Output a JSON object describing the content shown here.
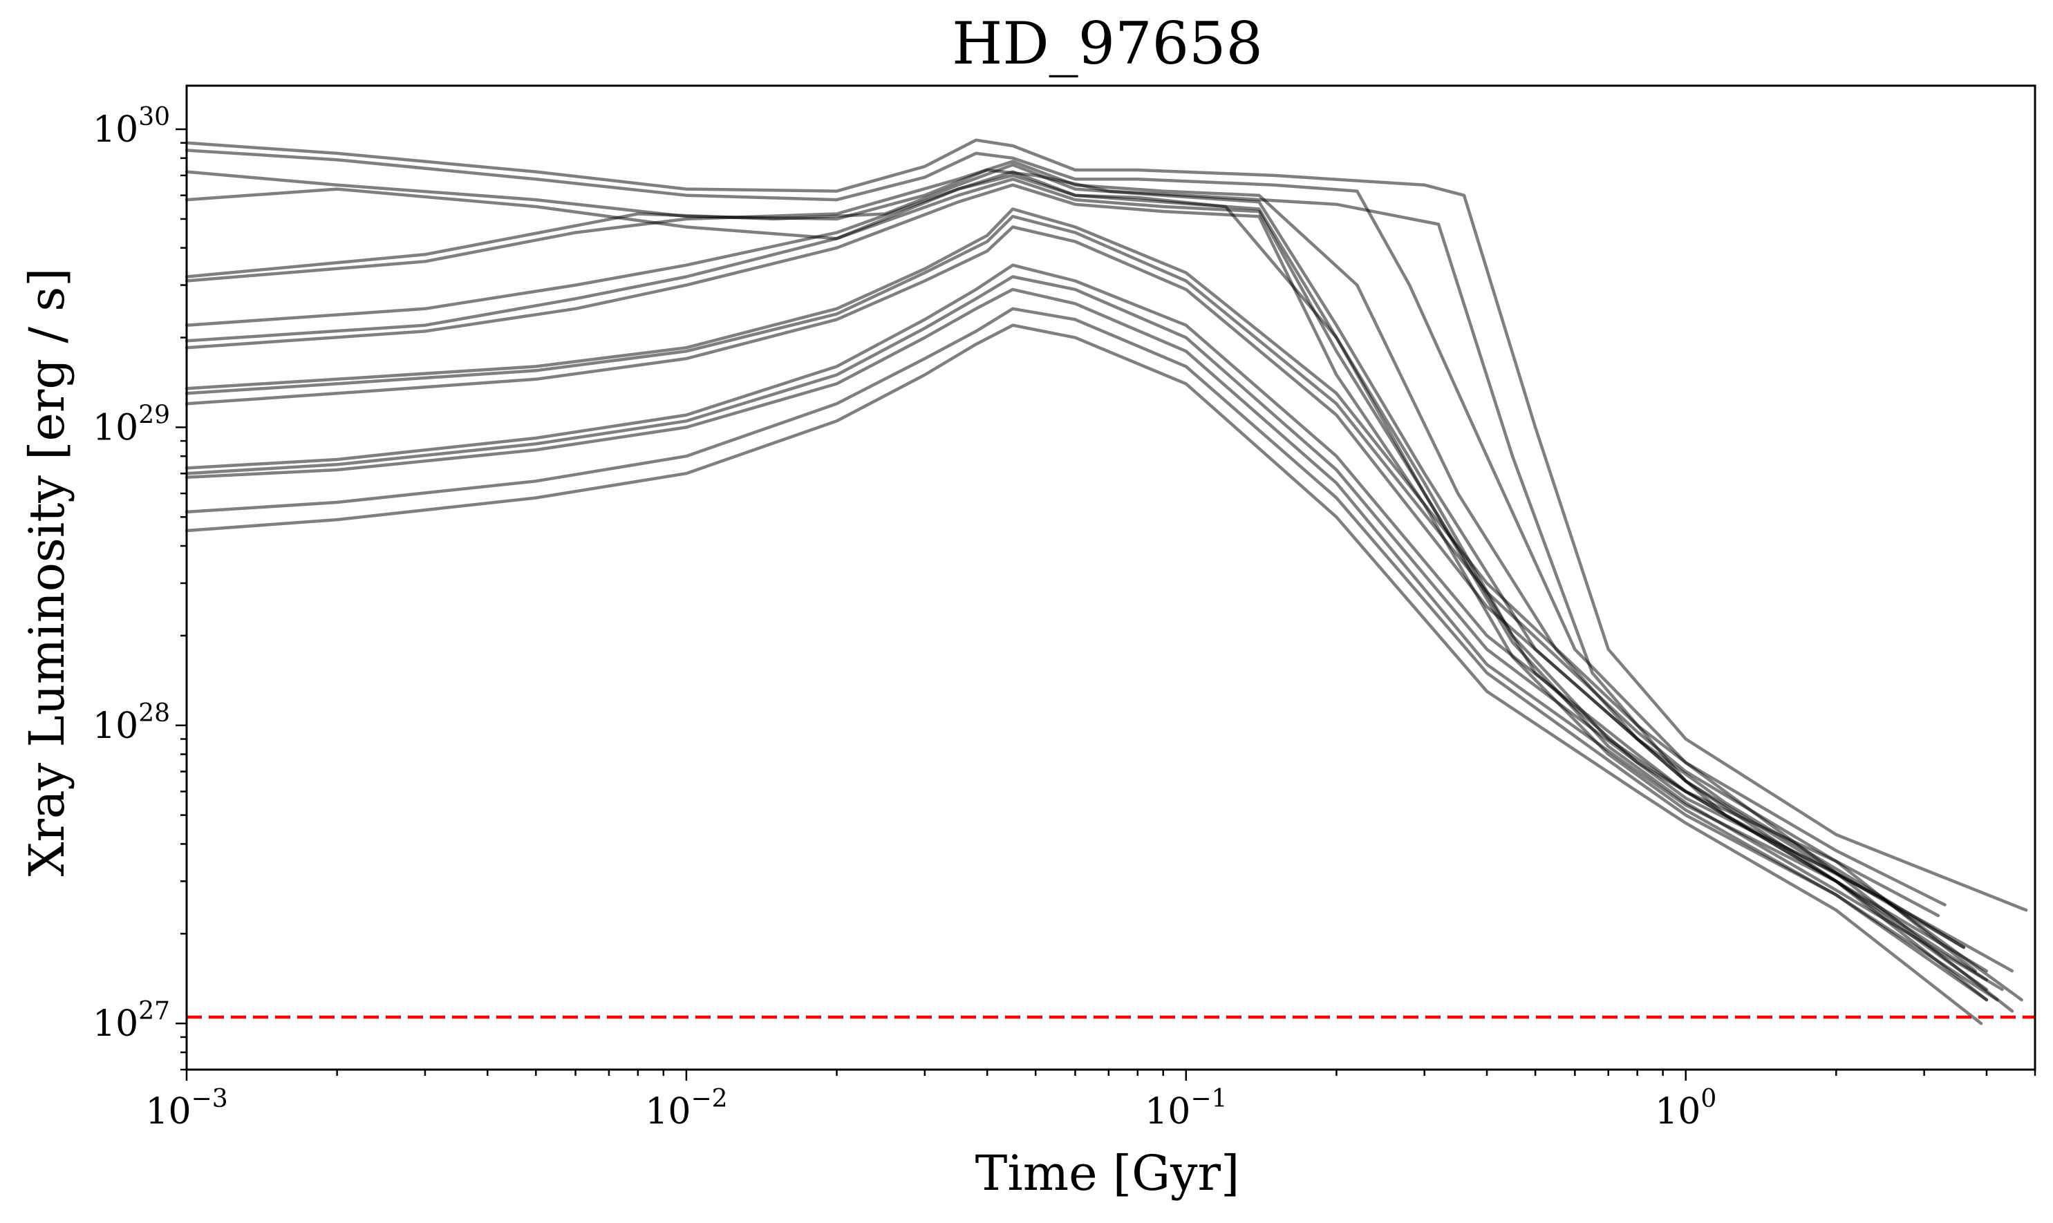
{
  "chart_data": {
    "type": "line",
    "title": "HD_97658",
    "xlabel": "Time [Gyr]",
    "ylabel": "Xray Luminosity [erg / s]",
    "xscale": "log",
    "yscale": "log",
    "xlim": [
      0.001,
      5.0
    ],
    "ylim": [
      7e+26,
      1.4e+30
    ],
    "grid": false,
    "legend": "none",
    "line_color": "#000000",
    "line_alpha": 0.5,
    "x_ticks": [
      {
        "value": 0.001,
        "base": "10",
        "exp": "−3"
      },
      {
        "value": 0.01,
        "base": "10",
        "exp": "−2"
      },
      {
        "value": 0.1,
        "base": "10",
        "exp": "−1"
      },
      {
        "value": 1,
        "base": "10",
        "exp": "0"
      }
    ],
    "y_ticks": [
      {
        "value": 1e+27,
        "base": "10",
        "exp": "27"
      },
      {
        "value": 1e+28,
        "base": "10",
        "exp": "28"
      },
      {
        "value": 1e+29,
        "base": "10",
        "exp": "29"
      },
      {
        "value": 1e+30,
        "base": "10",
        "exp": "30"
      }
    ],
    "reference_line": {
      "y": 1.05e+27,
      "color": "#ff0000",
      "style": "dashed"
    },
    "series": [
      {
        "x": [
          0.001,
          0.002,
          0.005,
          0.01,
          0.02,
          0.03,
          0.038,
          0.045,
          0.06,
          0.08,
          0.15,
          0.3,
          0.36,
          0.5,
          0.7,
          1.0,
          2.0,
          4.8
        ],
        "y": [
          9e+29,
          8.3e+29,
          7.2e+29,
          6.3e+29,
          6.2e+29,
          7.5e+29,
          9.2e+29,
          8.8e+29,
          7.3e+29,
          7.3e+29,
          7e+29,
          6.5e+29,
          6e+29,
          1e+29,
          1.8e+28,
          9e+27,
          4.3e+27,
          2.4e+27
        ]
      },
      {
        "x": [
          0.001,
          0.002,
          0.005,
          0.01,
          0.02,
          0.03,
          0.038,
          0.045,
          0.06,
          0.08,
          0.15,
          0.22,
          0.28,
          0.4,
          0.6,
          1.0,
          2.0,
          4.5
        ],
        "y": [
          8.5e+29,
          7.9e+29,
          6.8e+29,
          6e+29,
          5.8e+29,
          6.9e+29,
          8.3e+29,
          8e+29,
          6.8e+29,
          6.8e+29,
          6.5e+29,
          6.2e+29,
          3e+29,
          8e+28,
          1.8e+28,
          7.5e+27,
          3.2e+27,
          1.5e+27
        ]
      },
      {
        "x": [
          0.001,
          0.002,
          0.005,
          0.01,
          0.02,
          0.03,
          0.04,
          0.05,
          0.07,
          0.1,
          0.2,
          0.32,
          0.45,
          0.65,
          1.0,
          2.0,
          4.0
        ],
        "y": [
          7.2e+29,
          6.5e+29,
          5.8e+29,
          5.1e+29,
          5e+29,
          6e+29,
          7.3e+29,
          7e+29,
          6.2e+29,
          6e+29,
          5.6e+29,
          4.8e+29,
          8e+28,
          1.5e+28,
          6.5e+27,
          3e+27,
          1.2e+27
        ]
      },
      {
        "x": [
          0.001,
          0.002,
          0.005,
          0.01,
          0.02,
          0.035,
          0.045,
          0.06,
          0.08,
          0.12,
          0.2,
          0.3,
          0.5,
          0.8,
          1.2,
          2.5,
          4.7
        ],
        "y": [
          5.8e+29,
          6.3e+29,
          5.5e+29,
          4.7e+29,
          4.3e+29,
          6.3e+29,
          7e+29,
          6e+29,
          5.9e+29,
          5.5e+29,
          2e+29,
          6e+28,
          1.5e+28,
          7.5e+27,
          5e+27,
          2.6e+27,
          1.2e+27
        ]
      },
      {
        "x": [
          0.001,
          0.003,
          0.008,
          0.015,
          0.025,
          0.035,
          0.045,
          0.06,
          0.09,
          0.14,
          0.2,
          0.3,
          0.5,
          0.8,
          1.2,
          2.0,
          4.0
        ],
        "y": [
          3.2e+29,
          3.8e+29,
          5.2e+29,
          5e+29,
          5.2e+29,
          6.5e+29,
          7.6e+29,
          6.3e+29,
          6e+29,
          5.7e+29,
          2.2e+29,
          7e+28,
          1.8e+28,
          9e+27,
          5e+27,
          3e+27,
          1.4e+27
        ]
      },
      {
        "x": [
          0.001,
          0.003,
          0.006,
          0.01,
          0.02,
          0.035,
          0.045,
          0.06,
          0.09,
          0.14,
          0.22,
          0.35,
          0.55,
          0.8,
          1.2,
          2.0,
          3.6
        ],
        "y": [
          3.1e+29,
          3.6e+29,
          4.5e+29,
          5e+29,
          5.2e+29,
          6.8e+29,
          7.8e+29,
          6.5e+29,
          6.2e+29,
          6e+29,
          3e+29,
          6e+28,
          1.8e+28,
          9e+27,
          5.5e+27,
          3.3e+27,
          1.8e+27
        ]
      },
      {
        "x": [
          0.001,
          0.003,
          0.006,
          0.01,
          0.02,
          0.035,
          0.045,
          0.06,
          0.09,
          0.14,
          0.2,
          0.3,
          0.45,
          0.7,
          1.0,
          2.0,
          4.0
        ],
        "y": [
          2.2e+29,
          2.5e+29,
          3e+29,
          3.5e+29,
          4.5e+29,
          6.3e+29,
          7.2e+29,
          6e+29,
          5.7e+29,
          5.4e+29,
          2e+29,
          6.5e+28,
          2e+28,
          9e+27,
          6e+27,
          3e+27,
          1.3e+27
        ]
      },
      {
        "x": [
          0.001,
          0.003,
          0.006,
          0.01,
          0.02,
          0.035,
          0.045,
          0.06,
          0.09,
          0.14,
          0.2,
          0.3,
          0.45,
          0.7,
          1.0,
          2.0,
          4.3
        ],
        "y": [
          1.95e+29,
          2.2e+29,
          2.7e+29,
          3.2e+29,
          4.3e+29,
          6e+29,
          6.8e+29,
          5.8e+29,
          5.5e+29,
          5.3e+29,
          1.8e+29,
          6e+28,
          1.9e+28,
          8.5e+27,
          5.5e+27,
          2.8e+27,
          1.3e+27
        ]
      },
      {
        "x": [
          0.001,
          0.003,
          0.006,
          0.01,
          0.02,
          0.035,
          0.045,
          0.06,
          0.09,
          0.14,
          0.2,
          0.3,
          0.45,
          0.7,
          1.0,
          2.0,
          4.0
        ],
        "y": [
          1.85e+29,
          2.1e+29,
          2.5e+29,
          3e+29,
          4e+29,
          5.7e+29,
          6.5e+29,
          5.6e+29,
          5.3e+29,
          5.1e+29,
          1.5e+29,
          5.5e+28,
          1.7e+28,
          8e+27,
          5.2e+27,
          2.7e+27,
          1.2e+27
        ]
      },
      {
        "x": [
          0.001,
          0.002,
          0.005,
          0.01,
          0.02,
          0.03,
          0.04,
          0.045,
          0.06,
          0.1,
          0.2,
          0.4,
          0.8,
          1.0,
          2.0,
          3.3
        ],
        "y": [
          1.35e+29,
          1.45e+29,
          1.6e+29,
          1.85e+29,
          2.5e+29,
          3.4e+29,
          4.4e+29,
          5.4e+29,
          4.7e+29,
          3.3e+29,
          1.3e+29,
          3e+28,
          1e+28,
          7.5e+27,
          3.8e+27,
          2.5e+27
        ]
      },
      {
        "x": [
          0.001,
          0.002,
          0.005,
          0.01,
          0.02,
          0.03,
          0.04,
          0.045,
          0.06,
          0.1,
          0.2,
          0.4,
          0.8,
          1.0,
          2.0,
          3.8
        ],
        "y": [
          1.3e+29,
          1.4e+29,
          1.55e+29,
          1.8e+29,
          2.4e+29,
          3.3e+29,
          4.2e+29,
          5.1e+29,
          4.5e+29,
          3.1e+29,
          1.2e+29,
          2.8e+28,
          9.5e+27,
          7e+27,
          3.5e+27,
          1.5e+27
        ]
      },
      {
        "x": [
          0.001,
          0.002,
          0.005,
          0.01,
          0.02,
          0.03,
          0.04,
          0.045,
          0.06,
          0.1,
          0.2,
          0.4,
          0.8,
          1.0,
          2.0,
          4.5
        ],
        "y": [
          1.2e+29,
          1.3e+29,
          1.45e+29,
          1.7e+29,
          2.3e+29,
          3.1e+29,
          3.9e+29,
          4.7e+29,
          4.2e+29,
          2.9e+29,
          1.1e+29,
          2.5e+28,
          9e+27,
          6.5e+27,
          3.2e+27,
          1.1e+27
        ]
      },
      {
        "x": [
          0.001,
          0.002,
          0.005,
          0.01,
          0.02,
          0.03,
          0.038,
          0.045,
          0.06,
          0.1,
          0.2,
          0.4,
          0.8,
          1.0,
          2.0,
          3.2
        ],
        "y": [
          7.3e+28,
          7.8e+28,
          9.2e+28,
          1.1e+29,
          1.6e+29,
          2.3e+29,
          2.9e+29,
          3.5e+29,
          3.1e+29,
          2.2e+29,
          8e+28,
          2e+28,
          8e+27,
          6e+27,
          3.5e+27,
          2.3e+27
        ]
      },
      {
        "x": [
          0.001,
          0.002,
          0.005,
          0.01,
          0.02,
          0.03,
          0.038,
          0.045,
          0.06,
          0.1,
          0.2,
          0.4,
          0.8,
          1.0,
          2.0,
          3.6
        ],
        "y": [
          7e+28,
          7.5e+28,
          8.8e+28,
          1.05e+29,
          1.5e+29,
          2.15e+29,
          2.7e+29,
          3.2e+29,
          2.9e+29,
          2e+29,
          7.2e+28,
          1.8e+28,
          7.5e+27,
          5.7e+27,
          3.2e+27,
          1.8e+27
        ]
      },
      {
        "x": [
          0.001,
          0.002,
          0.005,
          0.01,
          0.02,
          0.03,
          0.038,
          0.045,
          0.06,
          0.1,
          0.2,
          0.4,
          0.8,
          1.0,
          2.0,
          4.0
        ],
        "y": [
          6.8e+28,
          7.2e+28,
          8.4e+28,
          1e+29,
          1.4e+29,
          2e+29,
          2.5e+29,
          2.9e+29,
          2.6e+29,
          1.8e+29,
          6.5e+28,
          1.6e+28,
          7e+27,
          5.4e+27,
          3e+27,
          1.5e+27
        ]
      },
      {
        "x": [
          0.001,
          0.002,
          0.005,
          0.01,
          0.02,
          0.03,
          0.038,
          0.045,
          0.06,
          0.1,
          0.2,
          0.4,
          0.8,
          1.0,
          2.0,
          4.2
        ],
        "y": [
          5.2e+28,
          5.6e+28,
          6.6e+28,
          8e+28,
          1.2e+29,
          1.7e+29,
          2.1e+29,
          2.5e+29,
          2.3e+29,
          1.6e+29,
          5.8e+28,
          1.5e+28,
          6.5e+27,
          5e+27,
          2.7e+27,
          1.2e+27
        ]
      },
      {
        "x": [
          0.001,
          0.002,
          0.005,
          0.01,
          0.02,
          0.03,
          0.038,
          0.045,
          0.06,
          0.1,
          0.2,
          0.4,
          0.8,
          1.0,
          2.0,
          3.9
        ],
        "y": [
          4.5e+28,
          4.9e+28,
          5.8e+28,
          7e+28,
          1.05e+29,
          1.5e+29,
          1.9e+29,
          2.2e+29,
          2e+29,
          1.4e+29,
          5e+28,
          1.3e+28,
          6e+27,
          4.7e+27,
          2.4e+27,
          1e+27
        ]
      }
    ]
  }
}
